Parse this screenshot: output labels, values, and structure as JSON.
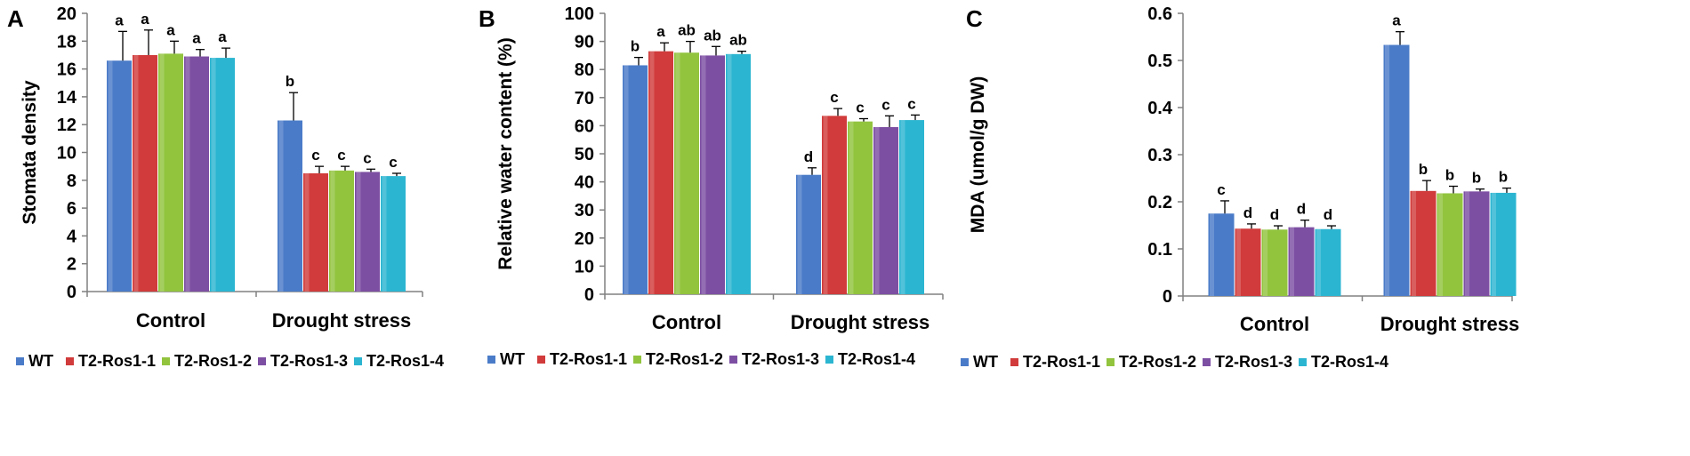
{
  "series_names": [
    "WT",
    "T2-Ros1-1",
    "T2-Ros1-2",
    "T2-Ros1-3",
    "T2-Ros1-4"
  ],
  "colors": [
    "#4a7bc8",
    "#d13b3b",
    "#92c43e",
    "#7d4fa3",
    "#2bb5d1"
  ],
  "chart_data": [
    {
      "panel": "A",
      "type": "bar",
      "ylabel": "Stomata density",
      "xlabel": "",
      "categories": [
        "Control",
        "Drought stress"
      ],
      "ylim": [
        0,
        20
      ],
      "ytick_step": 2,
      "ytick_labels": [
        "0",
        "2",
        "4",
        "6",
        "8",
        "10",
        "12",
        "14",
        "16",
        "18",
        "20"
      ],
      "series": [
        {
          "name": "WT",
          "values": [
            16.6,
            12.3
          ],
          "errors": [
            2.1,
            2.0
          ],
          "letters": [
            "a",
            "b"
          ]
        },
        {
          "name": "T2-Ros1-1",
          "values": [
            17.0,
            8.5
          ],
          "errors": [
            1.8,
            0.5
          ],
          "letters": [
            "a",
            "c"
          ]
        },
        {
          "name": "T2-Ros1-2",
          "values": [
            17.1,
            8.7
          ],
          "errors": [
            0.9,
            0.3
          ],
          "letters": [
            "a",
            "c"
          ]
        },
        {
          "name": "T2-Ros1-3",
          "values": [
            16.9,
            8.6
          ],
          "errors": [
            0.5,
            0.2
          ],
          "letters": [
            "a",
            "c"
          ]
        },
        {
          "name": "T2-Ros1-4",
          "values": [
            16.8,
            8.3
          ],
          "errors": [
            0.7,
            0.2
          ],
          "letters": [
            "a",
            "c"
          ]
        }
      ]
    },
    {
      "panel": "B",
      "type": "bar",
      "ylabel": "Relative water content (%)",
      "xlabel": "",
      "categories": [
        "Control",
        "Drought stress"
      ],
      "ylim": [
        0,
        100
      ],
      "ytick_step": 10,
      "ytick_labels": [
        "0",
        "10",
        "20",
        "30",
        "40",
        "50",
        "60",
        "70",
        "80",
        "90",
        "100"
      ],
      "series": [
        {
          "name": "WT",
          "values": [
            81.5,
            42.5
          ],
          "errors": [
            2.8,
            2.5
          ],
          "letters": [
            "b",
            "d"
          ]
        },
        {
          "name": "T2-Ros1-1",
          "values": [
            86.5,
            63.5
          ],
          "errors": [
            3.0,
            2.6
          ],
          "letters": [
            "a",
            "c"
          ]
        },
        {
          "name": "T2-Ros1-2",
          "values": [
            86.0,
            61.5
          ],
          "errors": [
            4.0,
            1.0
          ],
          "letters": [
            "ab",
            "c"
          ]
        },
        {
          "name": "T2-Ros1-3",
          "values": [
            85.0,
            59.5
          ],
          "errors": [
            3.2,
            4.0
          ],
          "letters": [
            "ab",
            "c"
          ]
        },
        {
          "name": "T2-Ros1-4",
          "values": [
            85.5,
            62.0
          ],
          "errors": [
            1.0,
            1.8
          ],
          "letters": [
            "ab",
            "c"
          ]
        }
      ]
    },
    {
      "panel": "C",
      "type": "bar",
      "ylabel": "MDA (umol/g DW)",
      "xlabel": "",
      "categories": [
        "Control",
        "Drought stress"
      ],
      "ylim": [
        0,
        0.6
      ],
      "ytick_step": 0.1,
      "ytick_labels": [
        "0",
        "0.1",
        "0.2",
        "0.3",
        "0.4",
        "0.5",
        "0.6"
      ],
      "series": [
        {
          "name": "WT",
          "values": [
            0.175,
            0.533
          ],
          "errors": [
            0.027,
            0.028
          ],
          "letters": [
            "c",
            "a"
          ]
        },
        {
          "name": "T2-Ros1-1",
          "values": [
            0.143,
            0.223
          ],
          "errors": [
            0.01,
            0.022
          ],
          "letters": [
            "d",
            "b"
          ]
        },
        {
          "name": "T2-Ros1-2",
          "values": [
            0.141,
            0.218
          ],
          "errors": [
            0.008,
            0.015
          ],
          "letters": [
            "d",
            "b"
          ]
        },
        {
          "name": "T2-Ros1-3",
          "values": [
            0.146,
            0.222
          ],
          "errors": [
            0.015,
            0.005
          ],
          "letters": [
            "d",
            "b"
          ]
        },
        {
          "name": "T2-Ros1-4",
          "values": [
            0.142,
            0.219
          ],
          "errors": [
            0.007,
            0.01
          ],
          "letters": [
            "d",
            "b"
          ]
        }
      ]
    }
  ]
}
